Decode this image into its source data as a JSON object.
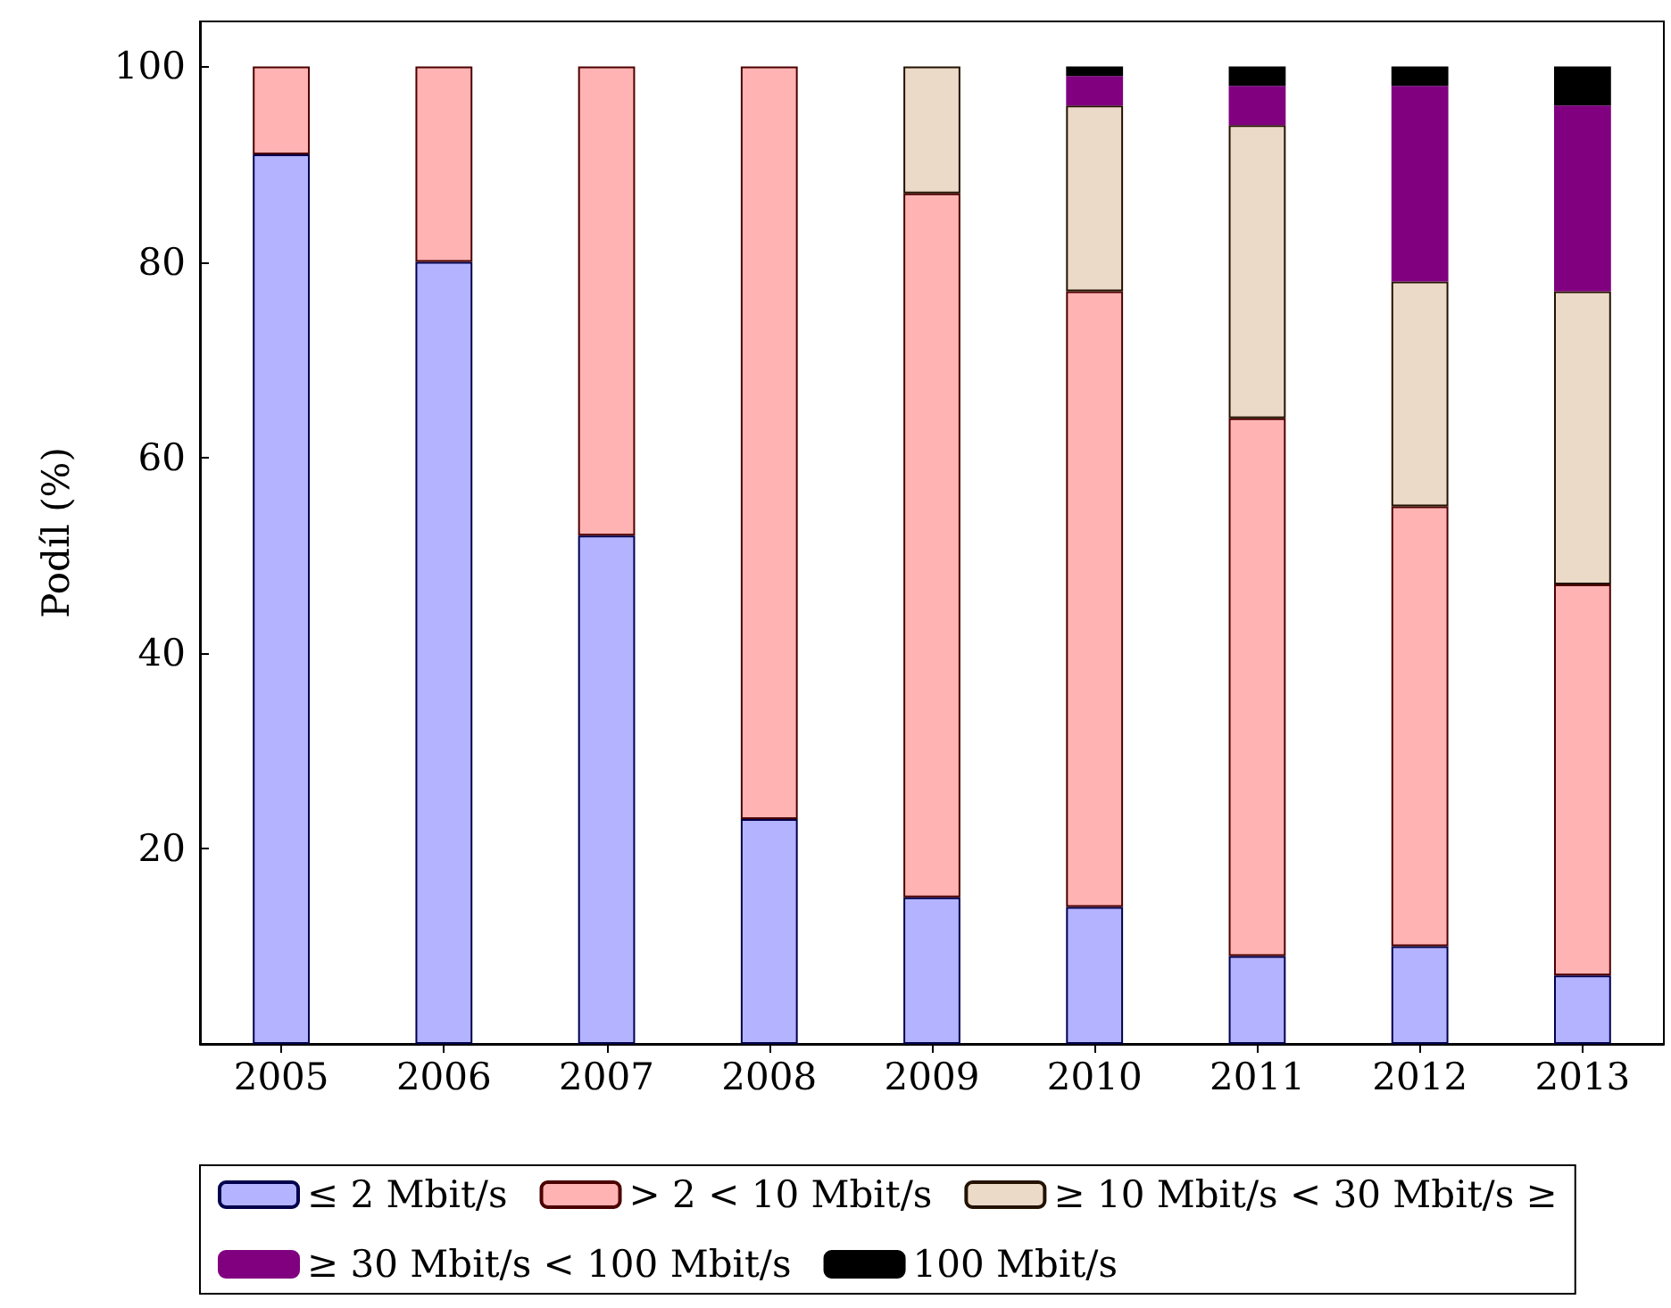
{
  "chart_data": {
    "type": "bar",
    "ylabel": "Podíl (%)",
    "stacked": true,
    "legend": "bottom",
    "grid": false,
    "categories": [
      "2005",
      "2006",
      "2007",
      "2008",
      "2009",
      "2010",
      "2011",
      "2012",
      "2013"
    ],
    "ylim": [
      0,
      104.6
    ],
    "yticks": [
      20,
      40,
      60,
      80,
      100
    ],
    "series": [
      {
        "name": "≤ 2 Mbit/s",
        "color": "#b3b3ff",
        "values": [
          91,
          80,
          52,
          23,
          15,
          14,
          9,
          10,
          7
        ]
      },
      {
        "name": "> 2 < 10 Mbit/s",
        "color": "#ffb3b3",
        "values": [
          9,
          20,
          48,
          77,
          72,
          63,
          55,
          45,
          40
        ]
      },
      {
        "name": "≥ 10 Mbit/s < 30 Mbit/s ≥",
        "color": "#ecdac8",
        "values": [
          null,
          null,
          null,
          null,
          13,
          19,
          30,
          23,
          30
        ]
      },
      {
        "name": "≥ 30 Mbit/s < 100 Mbit/s",
        "color": "#800080",
        "values": [
          null,
          null,
          null,
          null,
          null,
          3,
          4,
          20,
          19
        ]
      },
      {
        "name": "100 Mbit/s",
        "color": "#000000",
        "values": [
          null,
          null,
          null,
          null,
          null,
          1,
          2,
          2,
          4
        ]
      }
    ]
  }
}
